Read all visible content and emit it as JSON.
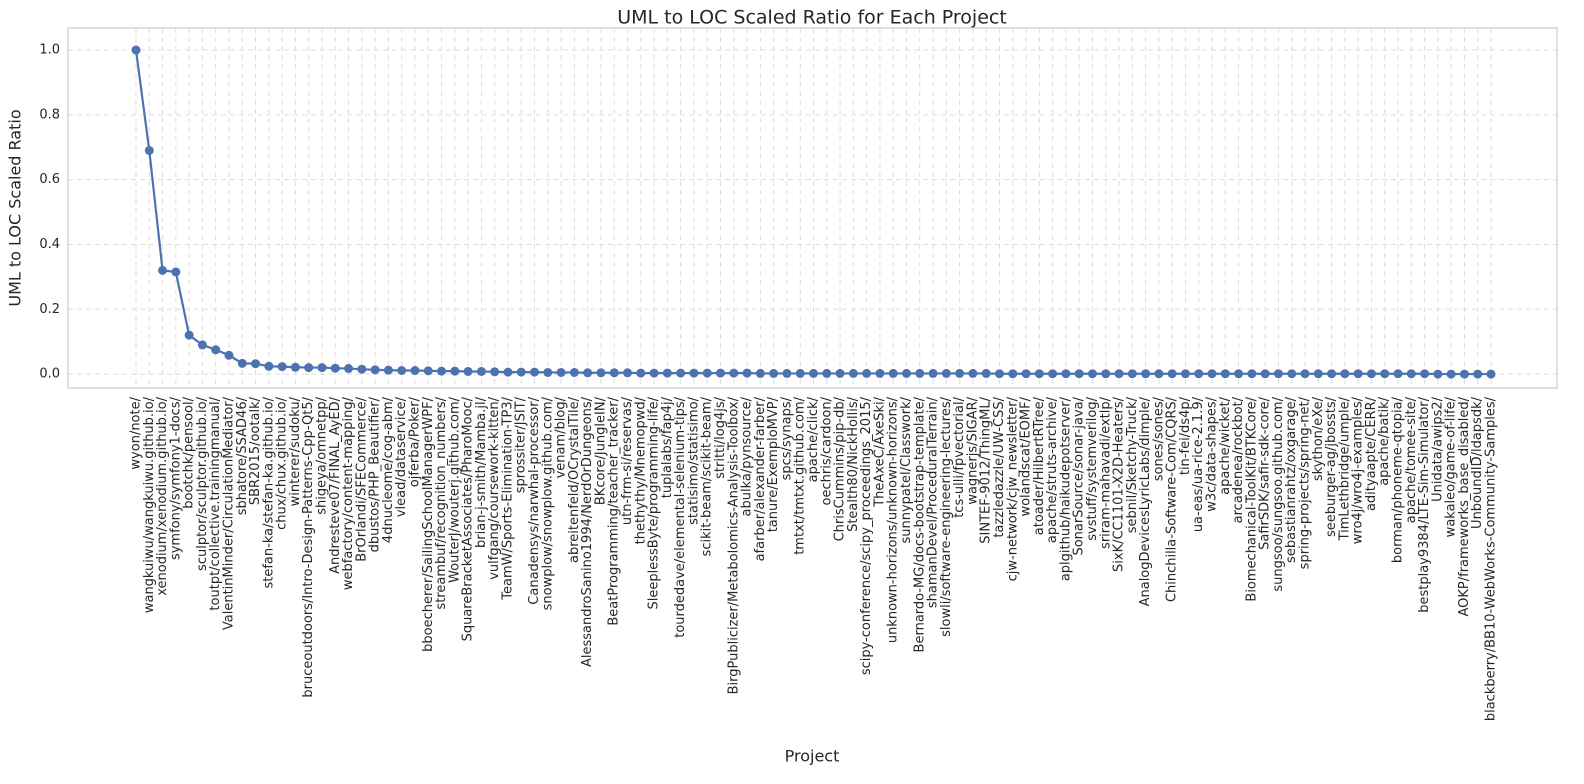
{
  "chart_data": {
    "type": "line",
    "title": "UML to LOC Scaled Ratio for Each Project",
    "x_label": "Project",
    "y_label": "UML to LOC Scaled Ratio",
    "categories": [
      "wyon/note/",
      "wangkuiwu/wangkuiwu.github.io/",
      "xenodium/xenodium.github.io/",
      "symfony/symfony1-docs/",
      "bootchk/pensool/",
      "sculptor/sculptor.github.io/",
      "toutpt/collective.trainingmanual/",
      "ValentinMinder/CirculationMediator/",
      "sbhatore/SSAD46/",
      "SBR2015/ootalk/",
      "stefan-ka/stefan-ka.github.io/",
      "chux/chux.github.io/",
      "winterer/sudoku/",
      "bruceoutdoors/Intro-Design-Patterns-Cpp-Qt5/",
      "shigeya/omnetpp/",
      "Andresteve07/FINAL_AyED/",
      "webfactory/content-mapping/",
      "BrOrlandi/SFECommerce/",
      "dbustos/PHP_Beautifier/",
      "4dnucleome/cog-abm/",
      "vlead/dataservice/",
      "ojferba/Poker/",
      "bboecherer/SailingSchoolManagerWPF/",
      "streambuf/recognition_numbers/",
      "WouterJ/wouterj.github.com/",
      "SquareBracketAssociates/PharoMooc/",
      "brian-j-smith/Mamba.jl/",
      "vulfgang/coursework-kitten/",
      "TeamW/Sports-Elimination-TP3/",
      "sprossiter/JSIT/",
      "Canadensys/narwhal-processor/",
      "snowplow/snowplow.github.com/",
      "venam/blog/",
      "abreitenfeld/OCrystalTile/",
      "AlessandroSanino1994/NerdOrDungeons/",
      "BKcore/JungleIN/",
      "BeatProgramming/teacher_tracker/",
      "utn-frm-si/reservas/",
      "thethythy/Mnemopwd/",
      "SleeplessByte/programming-life/",
      "tuplalabs/fap4j/",
      "tourdedave/elemental-selenium-tips/",
      "statisimo/statisimo/",
      "scikit-beam/scikit-beam/",
      "stritti/log4js/",
      "BirgPublicizer/Metabolomics-Analysis-Toolbox/",
      "abulka/pynsource/",
      "afarber/alexander-farber/",
      "tanure/ExemploMVP/",
      "spcs/synaps/",
      "tmtxt/tmtxt.github.com/",
      "apache/click/",
      "oechris/cardoon/",
      "ChrisCummins/pip-db/",
      "Stealth80/NickHollis/",
      "scipy-conference/scipy_proceedings_2015/",
      "TheAxeC/AxeSki/",
      "unknown-horizons/unknown-horizons/",
      "sunnypatel/Classwork/",
      "Bernardo-MG/docs-bootstrap-template/",
      "shamanDevel/ProceduralTerrain/",
      "slowli/software-engineering-lectures/",
      "tcs-ulli/fpvectorial/",
      "wagnerjs/SIGAR/",
      "SINTEF-9012/ThingML/",
      "tazzledazzle/UW-CSS/",
      "cjw-network/cjw_newsletter/",
      "wolandscat/EOMF/",
      "atoader/HilbertRTree/",
      "apache/struts-archive/",
      "aplgithub/haikudepotserver/",
      "SonarSource/sonar-java/",
      "svstuff/systemverilog/",
      "sriram-mahavadi/extlp/",
      "SixK/CC1101-X2D-Heaters/",
      "sebnil/Sketchy-Truck/",
      "AnalogDevicesLyricLabs/dimple/",
      "sones/sones/",
      "Chinchilla-Software-Com/CQRS/",
      "tin-fei/ds4p/",
      "ua-eas/ua-rice-2.1.9/",
      "w3c/data-shapes/",
      "apache/wicket/",
      "arcadenea/rockbot/",
      "Biomechanical-ToolKit/BTKCore/",
      "SafirSDK/safir-sdk-core/",
      "sungsoo/sungsoo.github.com/",
      "sebastianrahtz/oxgarage/",
      "spring-projects/spring-net/",
      "skython/eXe/",
      "seeburger-ag/jbossts/",
      "TimLethbridge/umple/",
      "wro4j/wro4j-examples/",
      "adityaapte/CERR/",
      "apache/batik/",
      "borman/phoneme-qtopia/",
      "apache/tomee-site/",
      "bestplay9384/LTE-Sim-Simulator/",
      "Unidata/awips2/",
      "wakaleo/game-of-life/",
      "AOKP/frameworks_base_disabled/",
      "UnboundID/ldapsdk/",
      "blackberry/BB10-WebWorks-Community-Samples/"
    ],
    "series": [
      {
        "name": "UML to LOC Scaled Ratio",
        "color": "#4c72b0",
        "values": [
          1.0,
          0.69,
          0.32,
          0.315,
          0.12,
          0.09,
          0.075,
          0.058,
          0.033,
          0.032,
          0.024,
          0.023,
          0.021,
          0.02,
          0.02,
          0.018,
          0.017,
          0.015,
          0.013,
          0.012,
          0.011,
          0.011,
          0.01,
          0.009,
          0.009,
          0.008,
          0.008,
          0.007,
          0.006,
          0.006,
          0.006,
          0.005,
          0.005,
          0.005,
          0.004,
          0.004,
          0.004,
          0.004,
          0.003,
          0.003,
          0.003,
          0.003,
          0.003,
          0.003,
          0.003,
          0.003,
          0.003,
          0.002,
          0.002,
          0.002,
          0.002,
          0.002,
          0.002,
          0.002,
          0.002,
          0.002,
          0.002,
          0.002,
          0.002,
          0.002,
          0.002,
          0.002,
          0.002,
          0.002,
          0.002,
          0.001,
          0.001,
          0.001,
          0.001,
          0.001,
          0.001,
          0.001,
          0.001,
          0.001,
          0.001,
          0.001,
          0.001,
          0.001,
          0.001,
          0.001,
          0.001,
          0.001,
          0.001,
          0.001,
          0.001,
          0.001,
          0.001,
          0.001,
          0.001,
          0.001,
          0.001,
          0.001,
          0.001,
          0.001,
          0.001,
          0.001,
          0.001,
          0.001,
          0.0,
          0.0,
          0.0,
          0.0,
          0.0
        ]
      }
    ],
    "ylim": [
      -0.043,
      1.068
    ],
    "yticks": [
      {
        "value": 0,
        "label": "0.0"
      },
      0.2,
      0.4,
      0.6,
      0.8,
      {
        "value": 1,
        "label": "1.0"
      }
    ],
    "grid": true
  }
}
